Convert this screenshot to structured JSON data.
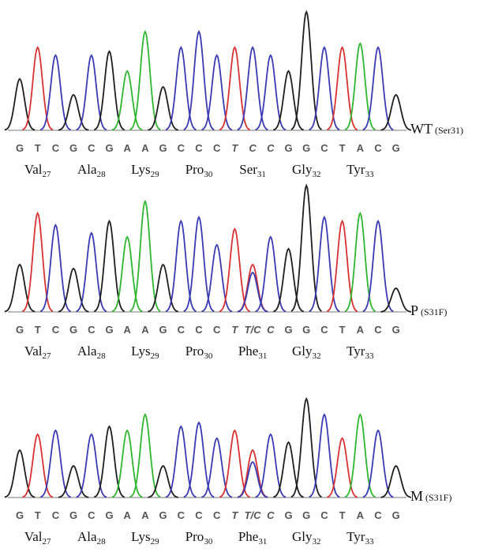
{
  "base_colors": {
    "A": "#2fb52f",
    "C": "#3a3ab4",
    "G": "#1e1e1e",
    "T": "#d83232"
  },
  "panels": [
    {
      "label": "WT",
      "sublabel": "(Ser31)",
      "sequence": [
        "G",
        "T",
        "C",
        "G",
        "C",
        "G",
        "A",
        "A",
        "G",
        "C",
        "C",
        "C",
        "T",
        "C",
        "C",
        "G",
        "G",
        "C",
        "T",
        "A",
        "C",
        "G"
      ],
      "peaks": [
        {
          "G": 65
        },
        {
          "T": 105
        },
        {
          "C": 95
        },
        {
          "G": 45
        },
        {
          "C": 95
        },
        {
          "G": 100
        },
        {
          "A": 75
        },
        {
          "A": 125
        },
        {
          "G": 55
        },
        {
          "C": 105
        },
        {
          "C": 125
        },
        {
          "C": 95
        },
        {
          "T": 105
        },
        {
          "C": 105
        },
        {
          "C": 95
        },
        {
          "G": 75
        },
        {
          "G": 150
        },
        {
          "C": 105
        },
        {
          "T": 105
        },
        {
          "A": 110
        },
        {
          "C": 105
        },
        {
          "G": 45
        }
      ],
      "amino_acids": [
        {
          "name": "Val",
          "number": 27
        },
        {
          "name": "Ala",
          "number": 28
        },
        {
          "name": "Lys",
          "number": 29
        },
        {
          "name": "Pro",
          "number": 30
        },
        {
          "name": "Ser",
          "number": 31
        },
        {
          "name": "Gly",
          "number": 32
        },
        {
          "name": "Tyr",
          "number": 33
        }
      ]
    },
    {
      "label": "P",
      "sublabel": "(S31F)",
      "sequence": [
        "G",
        "T",
        "C",
        "G",
        "C",
        "G",
        "A",
        "A",
        "G",
        "C",
        "C",
        "C",
        "T",
        "T/C",
        "C",
        "G",
        "G",
        "C",
        "T",
        "A",
        "C",
        "G"
      ],
      "peaks": [
        {
          "G": 60
        },
        {
          "T": 125
        },
        {
          "C": 110
        },
        {
          "G": 55
        },
        {
          "C": 100
        },
        {
          "G": 115
        },
        {
          "A": 95
        },
        {
          "A": 140
        },
        {
          "G": 60
        },
        {
          "C": 115
        },
        {
          "C": 120
        },
        {
          "C": 85
        },
        {
          "T": 105
        },
        {
          "T": 60,
          "C": 50
        },
        {
          "C": 95
        },
        {
          "G": 80
        },
        {
          "G": 160
        },
        {
          "C": 120
        },
        {
          "T": 115
        },
        {
          "A": 125
        },
        {
          "C": 115
        },
        {
          "G": 30
        }
      ],
      "amino_acids": [
        {
          "name": "Val",
          "number": 27
        },
        {
          "name": "Ala",
          "number": 28
        },
        {
          "name": "Lys",
          "number": 29
        },
        {
          "name": "Pro",
          "number": 30
        },
        {
          "name": "Phe",
          "number": 31
        },
        {
          "name": "Gly",
          "number": 32
        },
        {
          "name": "Tyr",
          "number": 33
        }
      ]
    },
    {
      "label": "M",
      "sublabel": "(S31F)",
      "sequence": [
        "G",
        "T",
        "C",
        "G",
        "C",
        "G",
        "A",
        "A",
        "G",
        "C",
        "C",
        "C",
        "T",
        "T/C",
        "C",
        "G",
        "G",
        "C",
        "T",
        "A",
        "C",
        "G"
      ],
      "peaks": [
        {
          "G": 60
        },
        {
          "T": 80
        },
        {
          "C": 85
        },
        {
          "G": 40
        },
        {
          "C": 80
        },
        {
          "G": 90
        },
        {
          "A": 85
        },
        {
          "A": 105
        },
        {
          "G": 40
        },
        {
          "C": 90
        },
        {
          "C": 95
        },
        {
          "C": 75
        },
        {
          "T": 85
        },
        {
          "T": 60,
          "C": 45
        },
        {
          "C": 80
        },
        {
          "G": 70
        },
        {
          "G": 125
        },
        {
          "C": 105
        },
        {
          "T": 75
        },
        {
          "A": 105
        },
        {
          "C": 85
        },
        {
          "G": 40
        }
      ],
      "amino_acids": [
        {
          "name": "Val",
          "number": 27
        },
        {
          "name": "Ala",
          "number": 28
        },
        {
          "name": "Lys",
          "number": 29
        },
        {
          "name": "Pro",
          "number": 30
        },
        {
          "name": "Phe",
          "number": 31
        },
        {
          "name": "Gly",
          "number": 32
        },
        {
          "name": "Tyr",
          "number": 33
        }
      ]
    }
  ]
}
